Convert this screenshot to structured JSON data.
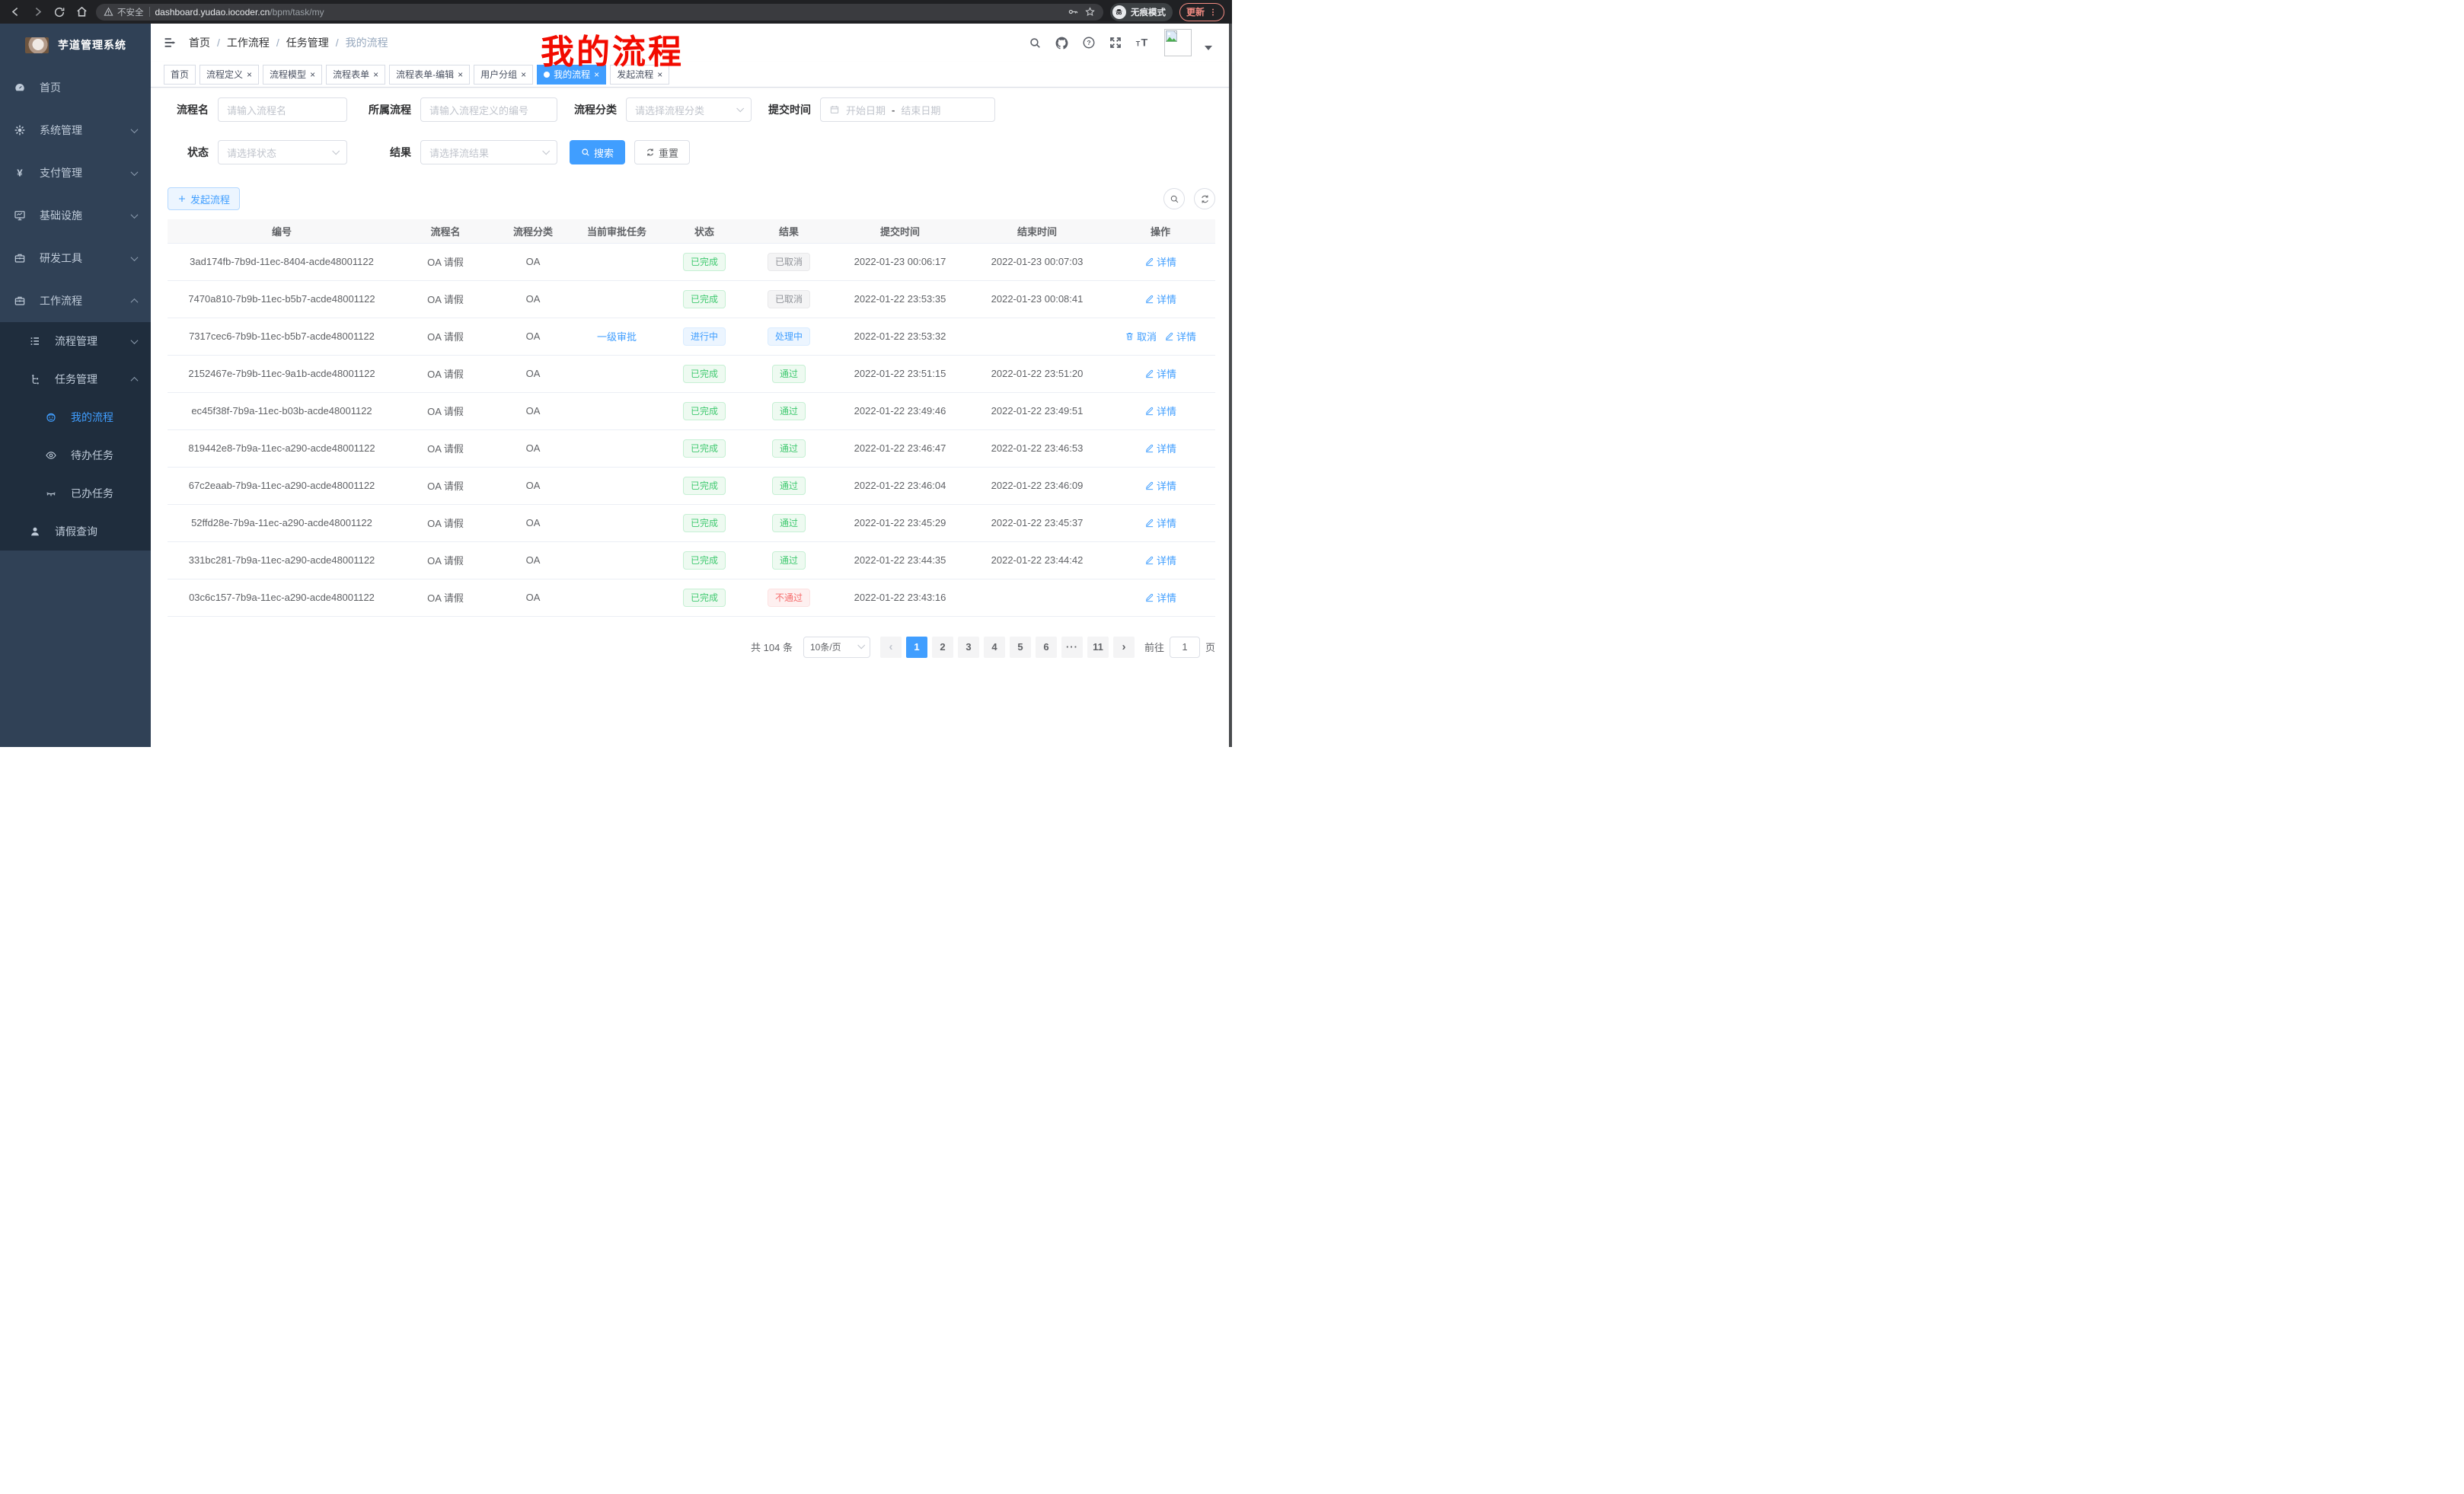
{
  "colors": {
    "accent": "#409eff",
    "success": "#3fc96f",
    "danger": "#f56c6c",
    "info": "#909399",
    "sidebar_bg": "#304156",
    "submenu_bg": "#1f2d3d",
    "annotation_red": "#f20b00"
  },
  "browser": {
    "security_label": "不安全",
    "url_host": "dashboard.yudao.iocoder.cn",
    "url_path": "/bpm/task/my",
    "incognito_label": "无痕模式",
    "update_label": "更新"
  },
  "annotation": "我的流程",
  "sidebar": {
    "title": "芋道管理系统",
    "menu": [
      {
        "key": "home",
        "label": "首页",
        "icon": "dashboard-icon",
        "level": 1
      },
      {
        "key": "system",
        "label": "系统管理",
        "icon": "gear-icon",
        "level": 1,
        "arrow": "down"
      },
      {
        "key": "payment",
        "label": "支付管理",
        "icon": "yen-icon",
        "level": 1,
        "arrow": "down"
      },
      {
        "key": "infra",
        "label": "基础设施",
        "icon": "monitor-icon",
        "level": 1,
        "arrow": "down"
      },
      {
        "key": "devtools",
        "label": "研发工具",
        "icon": "toolbox-icon",
        "level": 1,
        "arrow": "down"
      },
      {
        "key": "workflow",
        "label": "工作流程",
        "icon": "toolbox-icon",
        "level": 1,
        "arrow": "up"
      }
    ],
    "submenu": [
      {
        "key": "process-mgmt",
        "label": "流程管理",
        "icon": "list-icon",
        "level": 2,
        "arrow": "down"
      },
      {
        "key": "task-mgmt",
        "label": "任务管理",
        "icon": "tree-icon",
        "level": 2,
        "arrow": "up"
      },
      {
        "key": "my-process",
        "label": "我的流程",
        "icon": "robot-icon",
        "level": 3,
        "active": true
      },
      {
        "key": "todo-task",
        "label": "待办任务",
        "icon": "eye-icon",
        "level": 3
      },
      {
        "key": "done-task",
        "label": "已办任务",
        "icon": "eye-closed-icon",
        "level": 3
      },
      {
        "key": "leave-query",
        "label": "请假查询",
        "icon": "user-icon",
        "level": 2
      }
    ]
  },
  "navbar": {
    "breadcrumb": [
      "首页",
      "工作流程",
      "任务管理",
      "我的流程"
    ]
  },
  "tabs": [
    {
      "key": "home",
      "label": "首页",
      "closable": false,
      "active": false
    },
    {
      "key": "process-definition",
      "label": "流程定义",
      "closable": true,
      "active": false
    },
    {
      "key": "process-model",
      "label": "流程模型",
      "closable": true,
      "active": false
    },
    {
      "key": "process-form",
      "label": "流程表单",
      "closable": true,
      "active": false
    },
    {
      "key": "process-form-edit",
      "label": "流程表单-编辑",
      "closable": true,
      "active": false
    },
    {
      "key": "user-group",
      "label": "用户分组",
      "closable": true,
      "active": false
    },
    {
      "key": "my-process",
      "label": "我的流程",
      "closable": true,
      "active": true
    },
    {
      "key": "start-process",
      "label": "发起流程",
      "closable": true,
      "active": false
    }
  ],
  "filters": {
    "process_name": {
      "label": "流程名",
      "placeholder": "请输入流程名"
    },
    "process_def": {
      "label": "所属流程",
      "placeholder": "请输入流程定义的编号"
    },
    "category": {
      "label": "流程分类",
      "placeholder": "请选择流程分类"
    },
    "submit_time": {
      "label": "提交时间",
      "start_placeholder": "开始日期",
      "separator": "-",
      "end_placeholder": "结束日期"
    },
    "status": {
      "label": "状态",
      "placeholder": "请选择状态"
    },
    "result": {
      "label": "结果",
      "placeholder": "请选择流结果"
    },
    "search_label": "搜索",
    "reset_label": "重置"
  },
  "toolbar": {
    "create_label": "发起流程"
  },
  "table": {
    "headers": [
      "编号",
      "流程名",
      "流程分类",
      "当前审批任务",
      "状态",
      "结果",
      "提交时间",
      "结束时间",
      "操作"
    ],
    "rows": [
      {
        "id": "3ad174fb-7b9d-11ec-8404-acde48001122",
        "name": "OA 请假",
        "category": "OA",
        "task": "",
        "status": {
          "label": "已完成",
          "type": "success"
        },
        "result": {
          "label": "已取消",
          "type": "info"
        },
        "submit": "2022-01-23 00:06:17",
        "end": "2022-01-23 00:07:03",
        "actions": [
          {
            "key": "detail",
            "label": "详情",
            "icon": "edit-icon"
          }
        ]
      },
      {
        "id": "7470a810-7b9b-11ec-b5b7-acde48001122",
        "name": "OA 请假",
        "category": "OA",
        "task": "",
        "status": {
          "label": "已完成",
          "type": "success"
        },
        "result": {
          "label": "已取消",
          "type": "info"
        },
        "submit": "2022-01-22 23:53:35",
        "end": "2022-01-23 00:08:41",
        "actions": [
          {
            "key": "detail",
            "label": "详情",
            "icon": "edit-icon"
          }
        ]
      },
      {
        "id": "7317cec6-7b9b-11ec-b5b7-acde48001122",
        "name": "OA 请假",
        "category": "OA",
        "task": "一级审批",
        "status": {
          "label": "进行中",
          "type": "primary"
        },
        "result": {
          "label": "处理中",
          "type": "primary"
        },
        "submit": "2022-01-22 23:53:32",
        "end": "",
        "actions": [
          {
            "key": "cancel",
            "label": "取消",
            "icon": "delete-icon"
          },
          {
            "key": "detail",
            "label": "详情",
            "icon": "edit-icon"
          }
        ]
      },
      {
        "id": "2152467e-7b9b-11ec-9a1b-acde48001122",
        "name": "OA 请假",
        "category": "OA",
        "task": "",
        "status": {
          "label": "已完成",
          "type": "success"
        },
        "result": {
          "label": "通过",
          "type": "success"
        },
        "submit": "2022-01-22 23:51:15",
        "end": "2022-01-22 23:51:20",
        "actions": [
          {
            "key": "detail",
            "label": "详情",
            "icon": "edit-icon"
          }
        ]
      },
      {
        "id": "ec45f38f-7b9a-11ec-b03b-acde48001122",
        "name": "OA 请假",
        "category": "OA",
        "task": "",
        "status": {
          "label": "已完成",
          "type": "success"
        },
        "result": {
          "label": "通过",
          "type": "success"
        },
        "submit": "2022-01-22 23:49:46",
        "end": "2022-01-22 23:49:51",
        "actions": [
          {
            "key": "detail",
            "label": "详情",
            "icon": "edit-icon"
          }
        ]
      },
      {
        "id": "819442e8-7b9a-11ec-a290-acde48001122",
        "name": "OA 请假",
        "category": "OA",
        "task": "",
        "status": {
          "label": "已完成",
          "type": "success"
        },
        "result": {
          "label": "通过",
          "type": "success"
        },
        "submit": "2022-01-22 23:46:47",
        "end": "2022-01-22 23:46:53",
        "actions": [
          {
            "key": "detail",
            "label": "详情",
            "icon": "edit-icon"
          }
        ]
      },
      {
        "id": "67c2eaab-7b9a-11ec-a290-acde48001122",
        "name": "OA 请假",
        "category": "OA",
        "task": "",
        "status": {
          "label": "已完成",
          "type": "success"
        },
        "result": {
          "label": "通过",
          "type": "success"
        },
        "submit": "2022-01-22 23:46:04",
        "end": "2022-01-22 23:46:09",
        "actions": [
          {
            "key": "detail",
            "label": "详情",
            "icon": "edit-icon"
          }
        ]
      },
      {
        "id": "52ffd28e-7b9a-11ec-a290-acde48001122",
        "name": "OA 请假",
        "category": "OA",
        "task": "",
        "status": {
          "label": "已完成",
          "type": "success"
        },
        "result": {
          "label": "通过",
          "type": "success"
        },
        "submit": "2022-01-22 23:45:29",
        "end": "2022-01-22 23:45:37",
        "actions": [
          {
            "key": "detail",
            "label": "详情",
            "icon": "edit-icon"
          }
        ]
      },
      {
        "id": "331bc281-7b9a-11ec-a290-acde48001122",
        "name": "OA 请假",
        "category": "OA",
        "task": "",
        "status": {
          "label": "已完成",
          "type": "success"
        },
        "result": {
          "label": "通过",
          "type": "success"
        },
        "submit": "2022-01-22 23:44:35",
        "end": "2022-01-22 23:44:42",
        "actions": [
          {
            "key": "detail",
            "label": "详情",
            "icon": "edit-icon"
          }
        ]
      },
      {
        "id": "03c6c157-7b9a-11ec-a290-acde48001122",
        "name": "OA 请假",
        "category": "OA",
        "task": "",
        "status": {
          "label": "已完成",
          "type": "success"
        },
        "result": {
          "label": "不通过",
          "type": "danger"
        },
        "submit": "2022-01-22 23:43:16",
        "end": "",
        "actions": [
          {
            "key": "detail",
            "label": "详情",
            "icon": "edit-icon"
          }
        ]
      }
    ]
  },
  "pagination": {
    "total_label": "共 104 条",
    "page_size": "10条/页",
    "prev": "‹",
    "next": "›",
    "pages": [
      "1",
      "2",
      "3",
      "4",
      "5",
      "6",
      "···",
      "11"
    ],
    "active_page": "1",
    "goto_label": "前往",
    "goto_value": "1",
    "unit_label": "页"
  }
}
